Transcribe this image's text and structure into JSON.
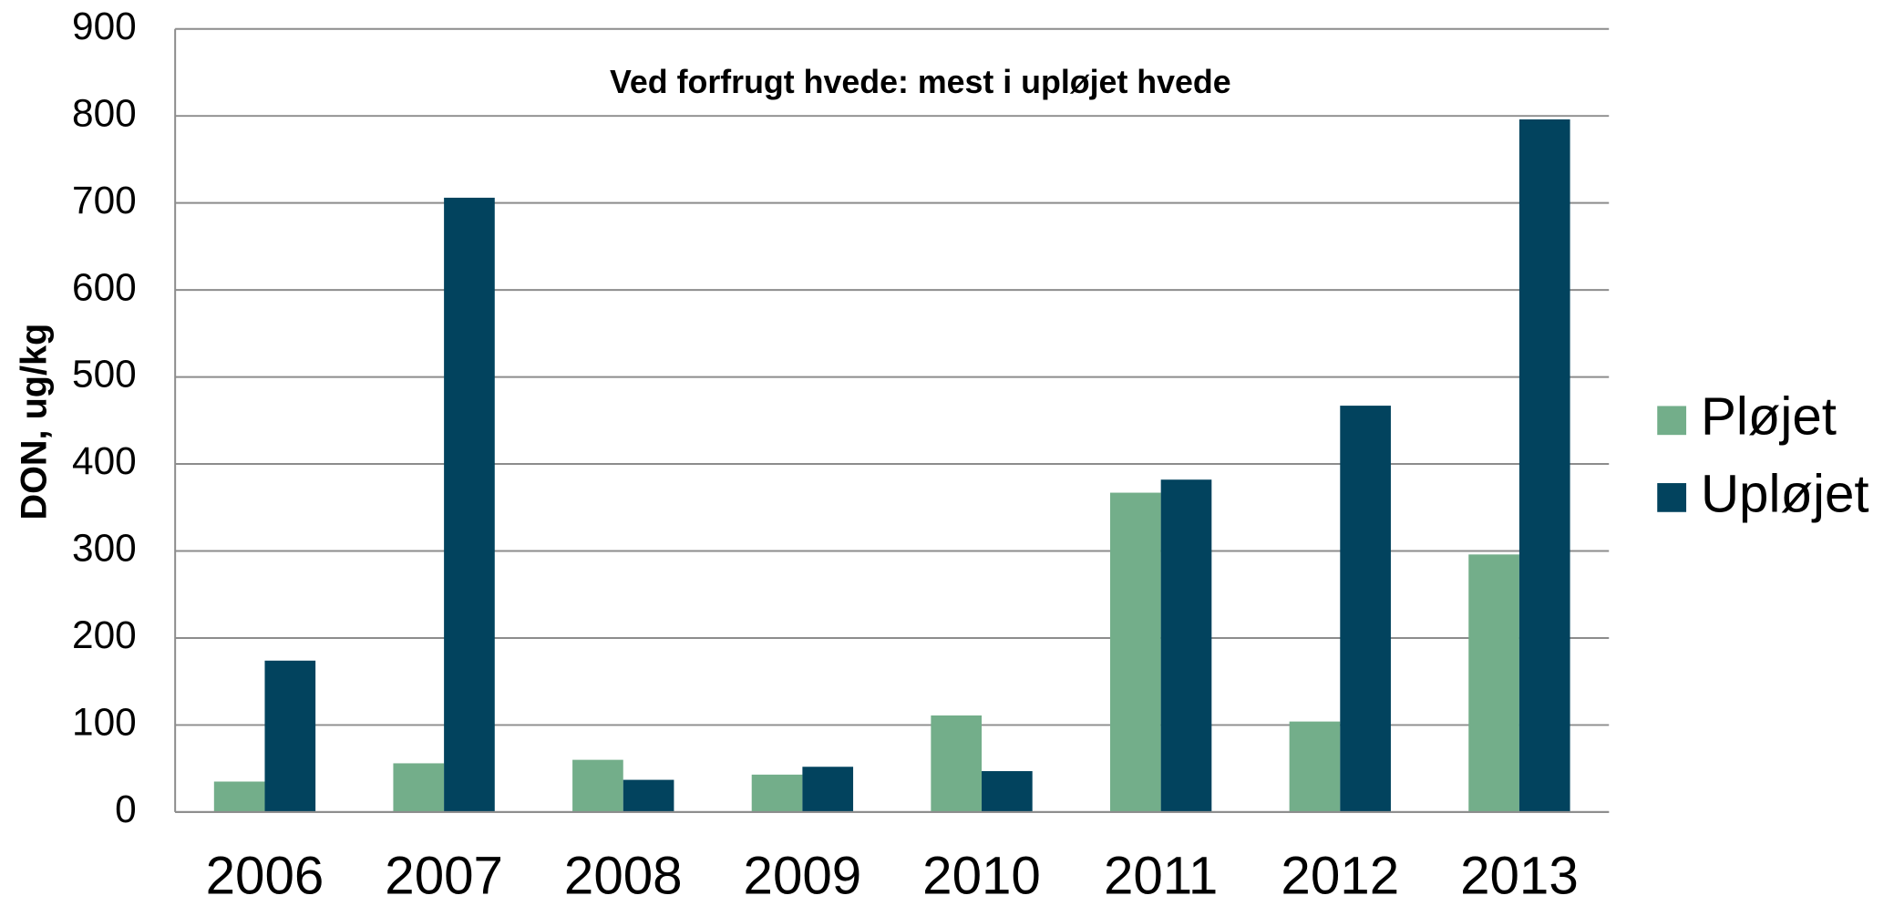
{
  "chart_data": {
    "type": "bar",
    "title": "Ved forfrugt hvede: mest i upløjet hvede",
    "y_label": "DON, ug/kg",
    "categories": [
      "2006",
      "2007",
      "2008",
      "2009",
      "2010",
      "2011",
      "2012",
      "2013"
    ],
    "series": [
      {
        "name": "Pløjet",
        "color": "#73ae8a",
        "values": [
          35,
          56,
          60,
          43,
          111,
          367,
          104,
          296
        ]
      },
      {
        "name": "Upløjet",
        "color": "#02435e",
        "values": [
          174,
          706,
          37,
          52,
          47,
          382,
          467,
          796
        ]
      }
    ],
    "ylim": [
      0,
      900
    ],
    "yticks": [
      0,
      100,
      200,
      300,
      400,
      500,
      600,
      700,
      800,
      900
    ],
    "grid": true,
    "legend": "right"
  }
}
